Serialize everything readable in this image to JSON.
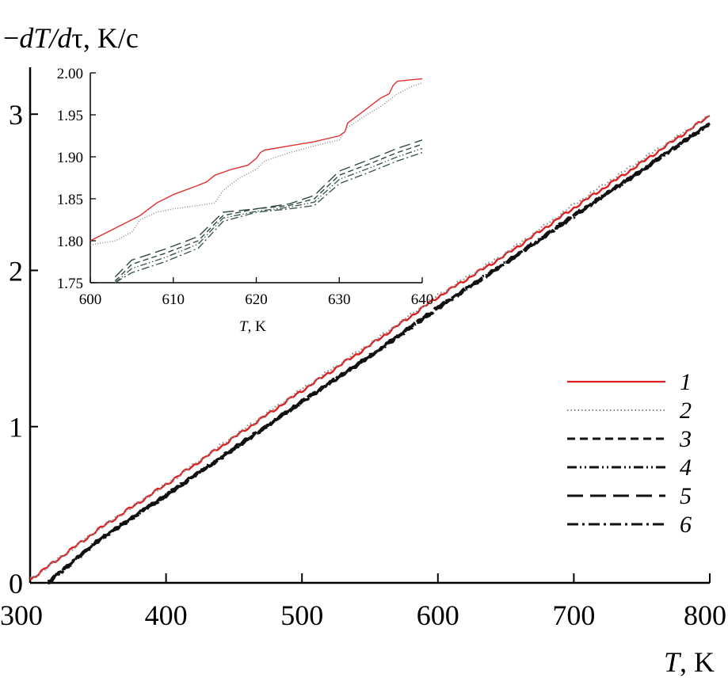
{
  "chart_data": [
    {
      "id": "main",
      "type": "line",
      "ylabel": {
        "prefix": "−",
        "italic": "dT/d",
        "tau": "τ",
        "suffix": ", K/c"
      },
      "xlabel": {
        "italic": "T",
        "suffix": ", K"
      },
      "xlim": [
        300,
        800
      ],
      "ylim": [
        0,
        3.3
      ],
      "x_ticks": [
        300,
        400,
        500,
        600,
        700,
        800
      ],
      "x_tick_labels": [
        "300",
        "400",
        "500",
        "600",
        "700",
        "800"
      ],
      "y_ticks": [
        0,
        1,
        2,
        3
      ],
      "y_tick_labels": [
        "0",
        "1",
        "2",
        "3"
      ],
      "series": [
        {
          "name": "1",
          "style": "solid",
          "color": "#e02020",
          "x": [
            300,
            350,
            400,
            450,
            500,
            550,
            600,
            650,
            700,
            750,
            800
          ],
          "values": [
            0.02,
            0.34,
            0.63,
            0.93,
            1.23,
            1.52,
            1.83,
            2.1,
            2.4,
            2.69,
            2.99
          ]
        },
        {
          "name": "2",
          "style": "dotted",
          "color": "#888888",
          "x": [
            300,
            350,
            400,
            450,
            500,
            550,
            600,
            650,
            700,
            750,
            800
          ],
          "values": [
            0.02,
            0.34,
            0.63,
            0.94,
            1.24,
            1.53,
            1.84,
            2.11,
            2.42,
            2.71,
            2.99
          ]
        },
        {
          "name": "3",
          "style": "dashed",
          "color": "#111111",
          "x": [
            313,
            350,
            400,
            450,
            500,
            550,
            600,
            650,
            700,
            750,
            800
          ],
          "values": [
            0.0,
            0.27,
            0.56,
            0.86,
            1.16,
            1.45,
            1.76,
            2.05,
            2.35,
            2.64,
            2.94
          ]
        },
        {
          "name": "4",
          "style": "dash-dot-dot",
          "color": "#111111",
          "x": [
            313,
            350,
            400,
            450,
            500,
            550,
            600,
            650,
            700,
            750,
            800
          ],
          "values": [
            0.0,
            0.27,
            0.56,
            0.86,
            1.16,
            1.45,
            1.76,
            2.05,
            2.35,
            2.64,
            2.94
          ]
        },
        {
          "name": "5",
          "style": "long-dash",
          "color": "#111111",
          "x": [
            313,
            350,
            400,
            450,
            500,
            550,
            600,
            650,
            700,
            750,
            800
          ],
          "values": [
            0.0,
            0.27,
            0.56,
            0.86,
            1.16,
            1.45,
            1.76,
            2.05,
            2.35,
            2.64,
            2.94
          ]
        },
        {
          "name": "6",
          "style": "dash-dot",
          "color": "#111111",
          "x": [
            313,
            350,
            400,
            450,
            500,
            550,
            600,
            650,
            700,
            750,
            800
          ],
          "values": [
            0.0,
            0.27,
            0.56,
            0.86,
            1.16,
            1.45,
            1.76,
            2.05,
            2.35,
            2.64,
            2.94
          ]
        }
      ],
      "legend": {
        "position": "right",
        "entries": [
          "1",
          "2",
          "3",
          "4",
          "5",
          "6"
        ]
      }
    },
    {
      "id": "inset",
      "type": "line",
      "xlabel": {
        "italic": "T",
        "suffix": ", K"
      },
      "xlim": [
        600,
        640
      ],
      "ylim": [
        1.75,
        2.0
      ],
      "x_ticks": [
        600,
        610,
        620,
        630,
        640
      ],
      "x_tick_labels": [
        "600",
        "610",
        "620",
        "630",
        "640"
      ],
      "y_ticks": [
        1.75,
        1.8,
        1.85,
        1.9,
        1.95,
        2.0
      ],
      "y_tick_labels": [
        "1.75",
        "1.80",
        "1.85",
        "1.90",
        "1.95",
        "2.00"
      ],
      "series": [
        {
          "name": "1",
          "style": "solid",
          "color": "#e03030",
          "x": [
            600,
            603,
            606,
            608,
            610,
            613,
            614,
            615,
            617,
            619,
            620,
            620.5,
            621,
            624,
            627,
            630,
            630.7,
            631,
            633,
            635,
            636,
            636.5,
            637,
            640
          ],
          "values": [
            1.8,
            1.815,
            1.83,
            1.845,
            1.855,
            1.866,
            1.87,
            1.878,
            1.885,
            1.89,
            1.898,
            1.905,
            1.908,
            1.913,
            1.918,
            1.925,
            1.93,
            1.94,
            1.955,
            1.97,
            1.975,
            1.985,
            1.99,
            1.993
          ]
        },
        {
          "name": "2",
          "style": "dotted",
          "color": "#888888",
          "x": [
            600,
            603,
            605,
            606,
            608,
            610,
            613,
            615,
            616,
            618,
            620,
            621,
            624,
            627,
            630,
            631,
            633,
            635,
            637,
            639,
            640
          ],
          "values": [
            1.795,
            1.8,
            1.81,
            1.825,
            1.834,
            1.838,
            1.842,
            1.845,
            1.86,
            1.875,
            1.885,
            1.895,
            1.905,
            1.913,
            1.92,
            1.935,
            1.948,
            1.96,
            1.975,
            1.985,
            1.988
          ]
        },
        {
          "name": "3",
          "style": "dashed",
          "color": "#2f4a3e",
          "x": [
            603,
            605,
            609,
            613,
            616,
            620,
            624,
            627,
            630,
            634,
            637,
            640
          ],
          "values": [
            1.752,
            1.772,
            1.785,
            1.8,
            1.83,
            1.838,
            1.842,
            1.85,
            1.878,
            1.893,
            1.905,
            1.915
          ]
        },
        {
          "name": "4",
          "style": "dash-dot-dot",
          "color": "#3f5a4e",
          "x": [
            603,
            605,
            609,
            613,
            616,
            620,
            624,
            627,
            630,
            634,
            637,
            640
          ],
          "values": [
            1.747,
            1.767,
            1.78,
            1.796,
            1.827,
            1.835,
            1.84,
            1.846,
            1.873,
            1.888,
            1.9,
            1.91
          ]
        },
        {
          "name": "5",
          "style": "long-dash",
          "color": "#2f4a3e",
          "x": [
            603,
            605,
            609,
            613,
            616,
            620,
            624,
            627,
            630,
            634,
            637,
            640
          ],
          "values": [
            1.757,
            1.777,
            1.79,
            1.805,
            1.834,
            1.838,
            1.844,
            1.854,
            1.883,
            1.898,
            1.91,
            1.92
          ]
        },
        {
          "name": "6",
          "style": "dash-dot",
          "color": "#3f5a4e",
          "x": [
            603,
            605,
            609,
            613,
            616,
            620,
            624,
            627,
            630,
            634,
            637,
            640
          ],
          "values": [
            1.742,
            1.762,
            1.775,
            1.791,
            1.823,
            1.834,
            1.838,
            1.842,
            1.868,
            1.883,
            1.895,
            1.905
          ]
        }
      ]
    }
  ]
}
